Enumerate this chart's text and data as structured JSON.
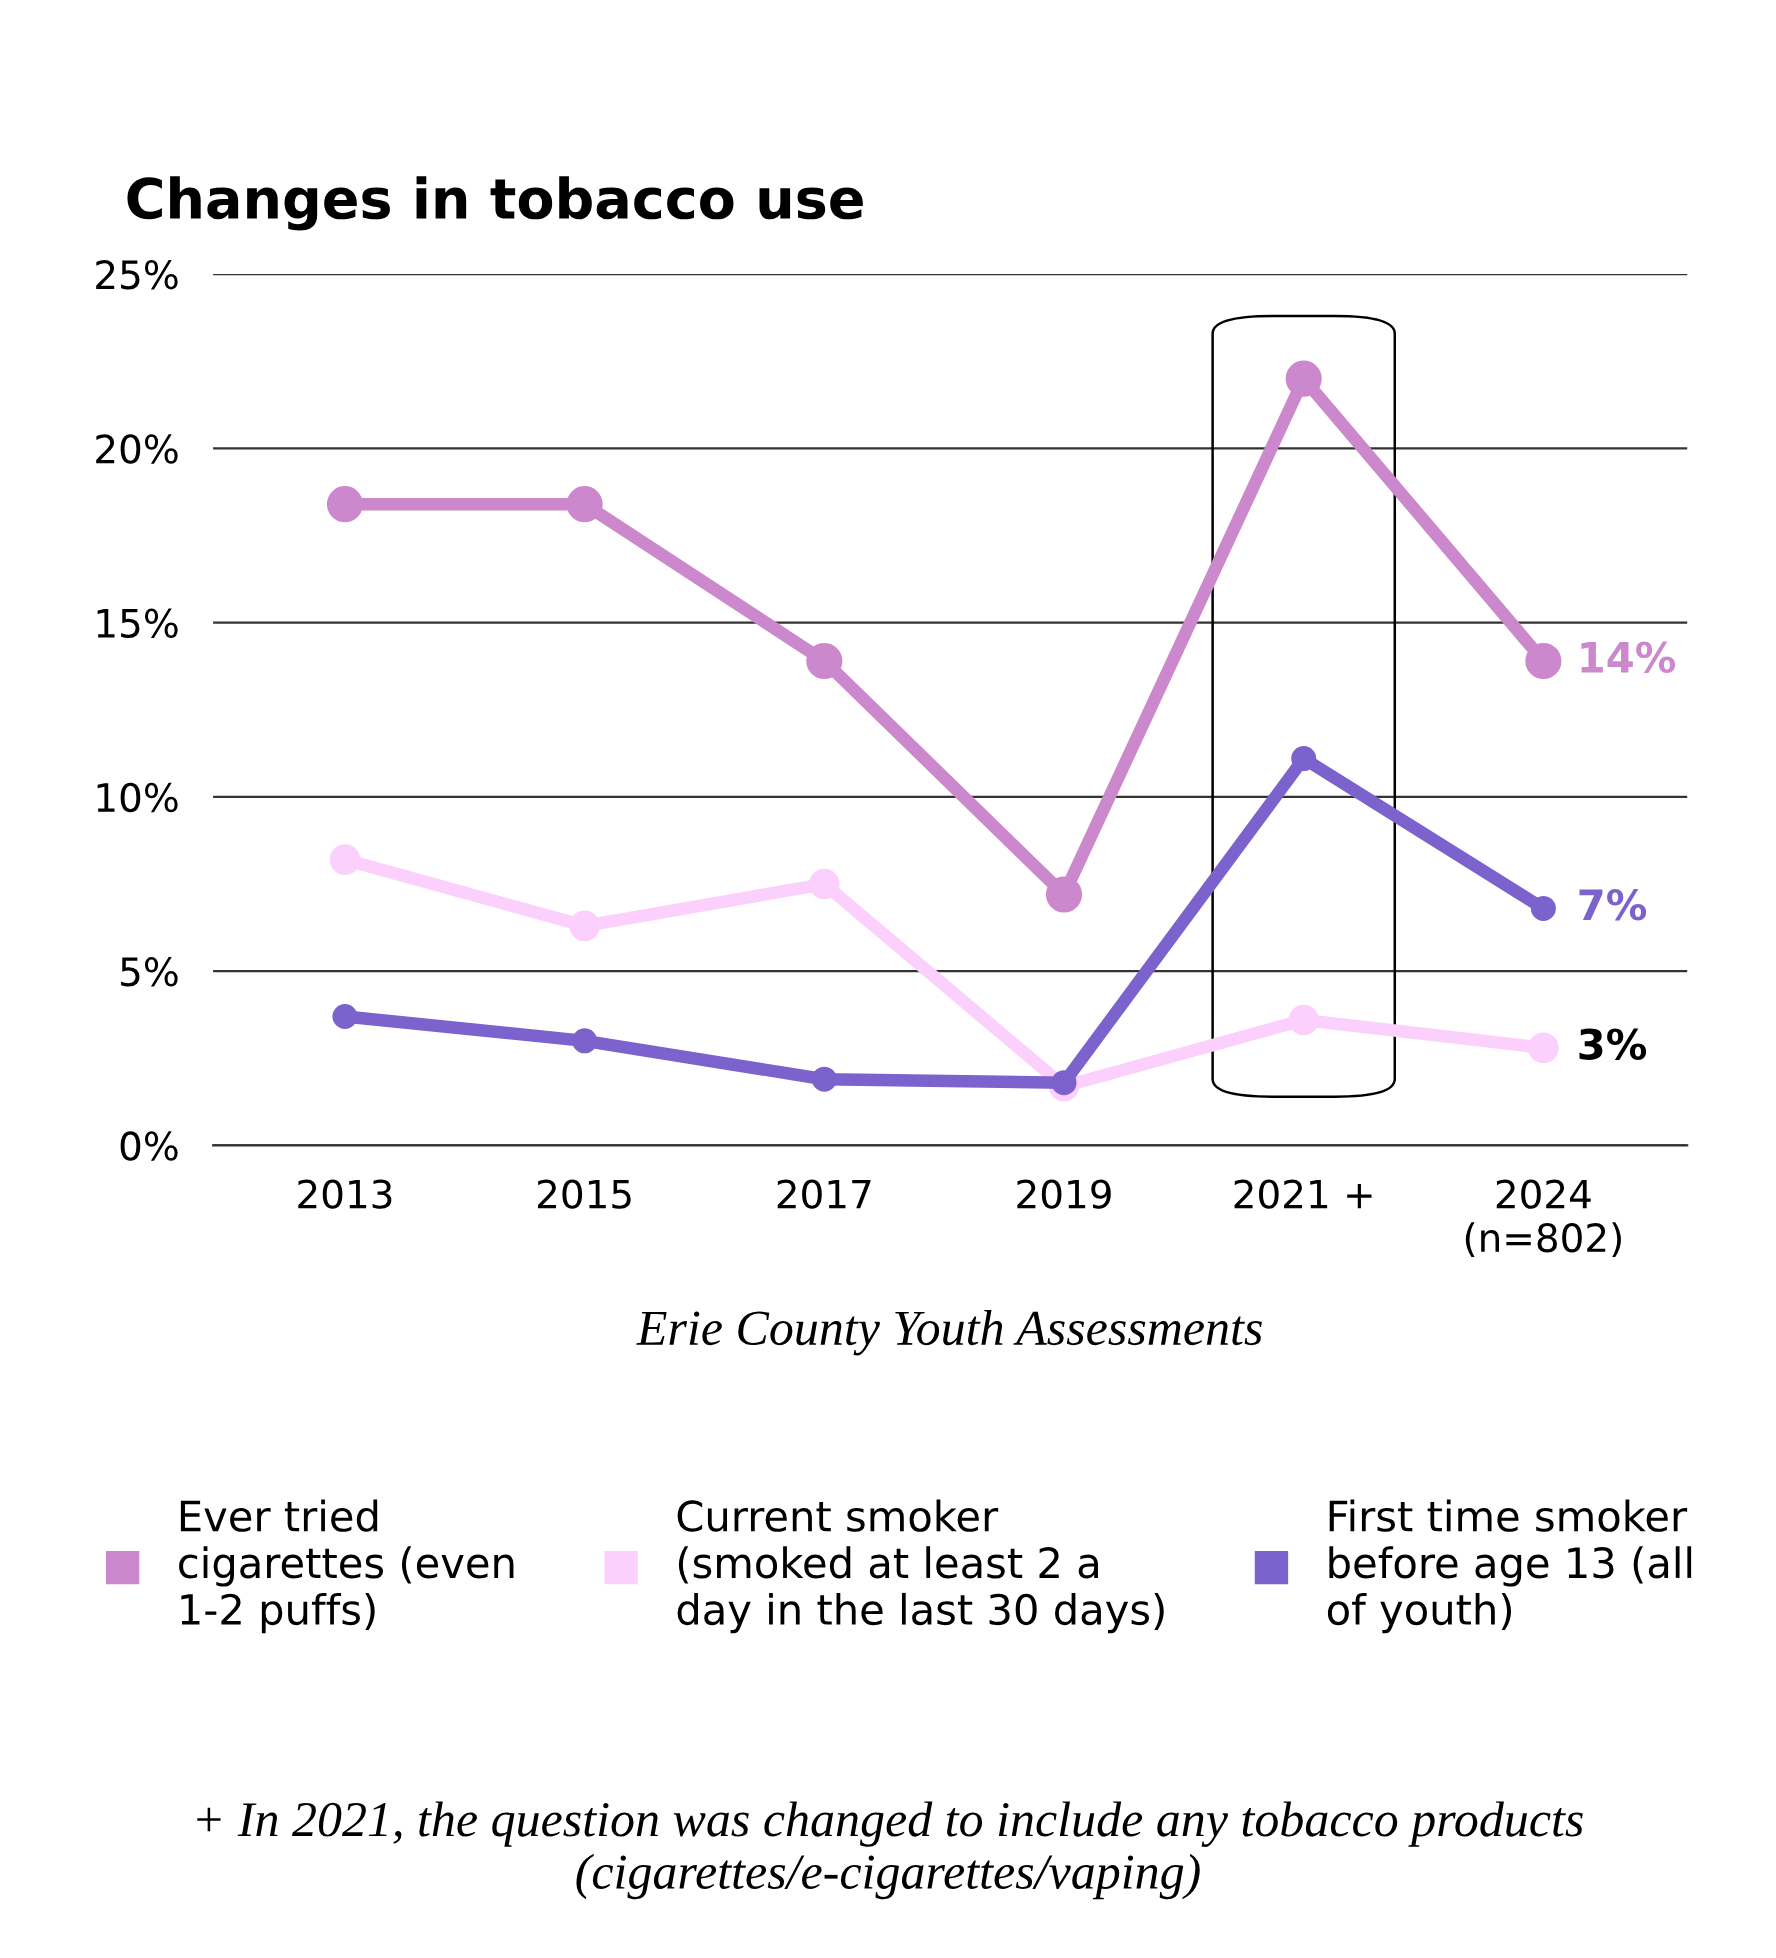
{
  "chart_data": {
    "type": "line",
    "title": "Changes in tobacco use",
    "categories": [
      "2013",
      "2015",
      "2017",
      "2019",
      "2021 +",
      "2024\n(n=802)"
    ],
    "series": [
      {
        "name": "Ever tried\ncigarettes (even\n1-2 puffs)",
        "color": "#cc88cc",
        "values": [
          18.4,
          18.4,
          13.9,
          7.2,
          22.0,
          13.9
        ],
        "value_labels": [
          null,
          null,
          null,
          null,
          null,
          "14%"
        ]
      },
      {
        "name": "Current smoker\n(smoked at least 2 a\nday in the last 30 days)",
        "color": "#fcd0fc",
        "values": [
          8.2,
          6.3,
          7.5,
          1.7,
          3.6,
          2.8
        ],
        "value_labels": [
          null,
          null,
          null,
          null,
          null,
          "3%"
        ]
      },
      {
        "name": "First time smoker\nbefore age 13 (all\nof youth)",
        "color": "#7b62cc",
        "values": [
          3.7,
          3.0,
          1.9,
          1.8,
          11.1,
          6.8
        ],
        "value_labels": [
          null,
          null,
          null,
          null,
          null,
          "7%"
        ]
      }
    ],
    "ylim": [
      0,
      25
    ],
    "yticks": [
      {
        "value": 0,
        "label": "0%"
      },
      {
        "value": 5,
        "label": "5%"
      },
      {
        "value": 10,
        "label": "10%"
      },
      {
        "value": 15,
        "label": "15%"
      },
      {
        "value": 20,
        "label": "20%"
      },
      {
        "value": 25,
        "label": "25%"
      }
    ],
    "xlabel": "Erie County Youth Assessments",
    "annotations": [
      "+ In 2021, the question was changed to include any tobacco products (cigarettes/e-cigarettes/vaping)"
    ],
    "grid": "y",
    "legend": "bottom",
    "marker": "circle",
    "line_style": "solid"
  }
}
